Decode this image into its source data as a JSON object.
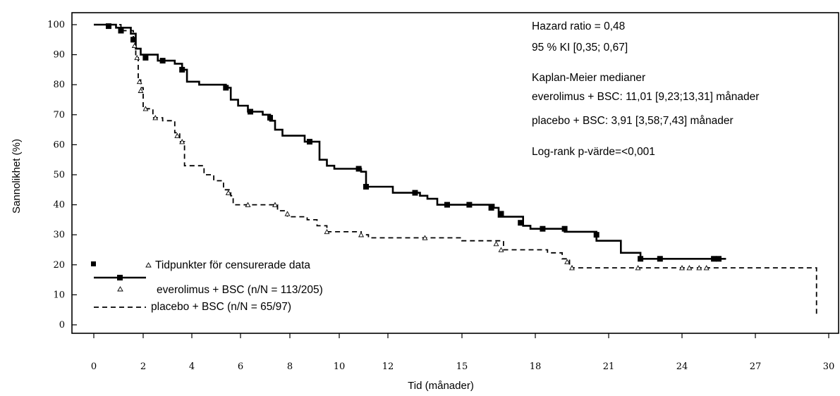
{
  "chart_data": {
    "type": "line",
    "title": "",
    "xlabel": "Tid (månader)",
    "ylabel": "Sannolikhet (%)",
    "xlim": [
      0,
      30
    ],
    "ylim": [
      0,
      100
    ],
    "grid": false,
    "x_ticks": [
      {
        "value": 0,
        "label": "0"
      },
      {
        "value": 2,
        "label": "2"
      },
      {
        "value": 4,
        "label": "4"
      },
      {
        "value": 6,
        "label": "6"
      },
      {
        "value": 8,
        "label": "8"
      },
      {
        "value": 10,
        "label": "10"
      },
      {
        "value": 12,
        "label": "12"
      },
      {
        "value": 15,
        "label": "15"
      },
      {
        "value": 18,
        "label": "18"
      },
      {
        "value": 21,
        "label": "21"
      },
      {
        "value": 24,
        "label": "24"
      },
      {
        "value": 27,
        "label": "27"
      },
      {
        "value": 30,
        "label": "30"
      }
    ],
    "y_ticks": [
      {
        "value": 0,
        "label": "0"
      },
      {
        "value": 10,
        "label": "10"
      },
      {
        "value": 20,
        "label": "20"
      },
      {
        "value": 30,
        "label": "30"
      },
      {
        "value": 40,
        "label": "40"
      },
      {
        "value": 50,
        "label": "50"
      },
      {
        "value": 60,
        "label": "60"
      },
      {
        "value": 70,
        "label": "70"
      },
      {
        "value": 80,
        "label": "80"
      },
      {
        "value": 90,
        "label": "90"
      },
      {
        "value": 100,
        "label": "100"
      }
    ],
    "annotations": [
      "Hazard ratio = 0,48",
      "95 % KI [0,35; 0,67]",
      "Kaplan-Meier medianer",
      "everolimus + BSC: 11,01 [9,23;13,31] månader",
      "placebo + BSC: 3,91 [3,58;7,43] månader",
      "Log-rank p-värde=<0,001"
    ],
    "legend": {
      "censor_label": "Tidpunkter för censurerade data",
      "placement": "bottom-left"
    },
    "series": [
      {
        "name": "everolimus + BSC (n/N = 113/205)",
        "color": "#000000",
        "style": "solid",
        "censor_marker": "square",
        "steps": [
          [
            0,
            100
          ],
          [
            0.9,
            99
          ],
          [
            1.5,
            97
          ],
          [
            1.7,
            92
          ],
          [
            1.9,
            90
          ],
          [
            2.6,
            88
          ],
          [
            3.3,
            87
          ],
          [
            3.6,
            85
          ],
          [
            3.8,
            81
          ],
          [
            4.3,
            80
          ],
          [
            5.4,
            79
          ],
          [
            5.6,
            75
          ],
          [
            5.9,
            73
          ],
          [
            6.3,
            71
          ],
          [
            6.9,
            70
          ],
          [
            7.2,
            68
          ],
          [
            7.4,
            65
          ],
          [
            7.7,
            63
          ],
          [
            8.6,
            61
          ],
          [
            9.2,
            55
          ],
          [
            9.5,
            53
          ],
          [
            9.8,
            52
          ],
          [
            10.9,
            51
          ],
          [
            11.1,
            46
          ],
          [
            12.2,
            44
          ],
          [
            13.3,
            43
          ],
          [
            13.6,
            42
          ],
          [
            14.0,
            40
          ],
          [
            16.3,
            39
          ],
          [
            16.5,
            36
          ],
          [
            17.5,
            33
          ],
          [
            17.8,
            32
          ],
          [
            19.2,
            31
          ],
          [
            20.5,
            28
          ],
          [
            21.5,
            24
          ],
          [
            22.3,
            22
          ],
          [
            25.8,
            22
          ]
        ],
        "censored": [
          [
            0.6,
            99.5
          ],
          [
            1.1,
            98
          ],
          [
            1.6,
            95
          ],
          [
            2.1,
            89
          ],
          [
            2.8,
            88
          ],
          [
            3.6,
            85
          ],
          [
            5.4,
            79
          ],
          [
            6.4,
            71
          ],
          [
            7.2,
            69
          ],
          [
            8.8,
            61
          ],
          [
            10.8,
            52
          ],
          [
            11.1,
            46
          ],
          [
            13.1,
            44
          ],
          [
            14.4,
            40
          ],
          [
            15.3,
            40
          ],
          [
            16.2,
            39
          ],
          [
            16.6,
            37
          ],
          [
            17.4,
            34
          ],
          [
            18.3,
            32
          ],
          [
            19.2,
            32
          ],
          [
            20.5,
            30
          ],
          [
            22.3,
            22
          ],
          [
            23.1,
            22
          ],
          [
            25.3,
            22
          ],
          [
            25.5,
            22
          ]
        ]
      },
      {
        "name": "placebo + BSC (n/N = 65/97)",
        "color": "#000000",
        "style": "dashed",
        "censor_marker": "triangle",
        "steps": [
          [
            0,
            100
          ],
          [
            1.1,
            98
          ],
          [
            1.6,
            95
          ],
          [
            1.7,
            89
          ],
          [
            1.8,
            82
          ],
          [
            1.9,
            79
          ],
          [
            2.0,
            72
          ],
          [
            2.4,
            69
          ],
          [
            2.8,
            68
          ],
          [
            3.3,
            64
          ],
          [
            3.5,
            61
          ],
          [
            3.7,
            53
          ],
          [
            4.5,
            50
          ],
          [
            4.9,
            48
          ],
          [
            5.3,
            45
          ],
          [
            5.6,
            43
          ],
          [
            5.7,
            40
          ],
          [
            7.5,
            38
          ],
          [
            7.9,
            36
          ],
          [
            8.7,
            35
          ],
          [
            9.1,
            33
          ],
          [
            9.5,
            31
          ],
          [
            10.9,
            30
          ],
          [
            11.2,
            29
          ],
          [
            13.0,
            29
          ],
          [
            15.0,
            28
          ],
          [
            16.7,
            25
          ],
          [
            18.5,
            24
          ],
          [
            19.1,
            22
          ],
          [
            19.4,
            20
          ],
          [
            19.5,
            19
          ],
          [
            29.5,
            19
          ],
          [
            29.5,
            3
          ]
        ],
        "censored": [
          [
            1.65,
            93
          ],
          [
            1.75,
            89
          ],
          [
            1.85,
            81
          ],
          [
            1.9,
            78
          ],
          [
            2.1,
            72
          ],
          [
            2.5,
            69
          ],
          [
            3.4,
            63
          ],
          [
            3.6,
            61
          ],
          [
            5.5,
            44
          ],
          [
            6.3,
            40
          ],
          [
            7.4,
            40
          ],
          [
            7.9,
            37
          ],
          [
            9.5,
            31
          ],
          [
            10.9,
            30
          ],
          [
            13.5,
            29
          ],
          [
            16.4,
            27
          ],
          [
            16.6,
            25
          ],
          [
            19.3,
            21
          ],
          [
            19.5,
            19
          ],
          [
            22.2,
            19
          ],
          [
            24.0,
            19
          ],
          [
            24.3,
            19
          ],
          [
            24.7,
            19
          ],
          [
            25.0,
            19
          ]
        ]
      }
    ]
  }
}
